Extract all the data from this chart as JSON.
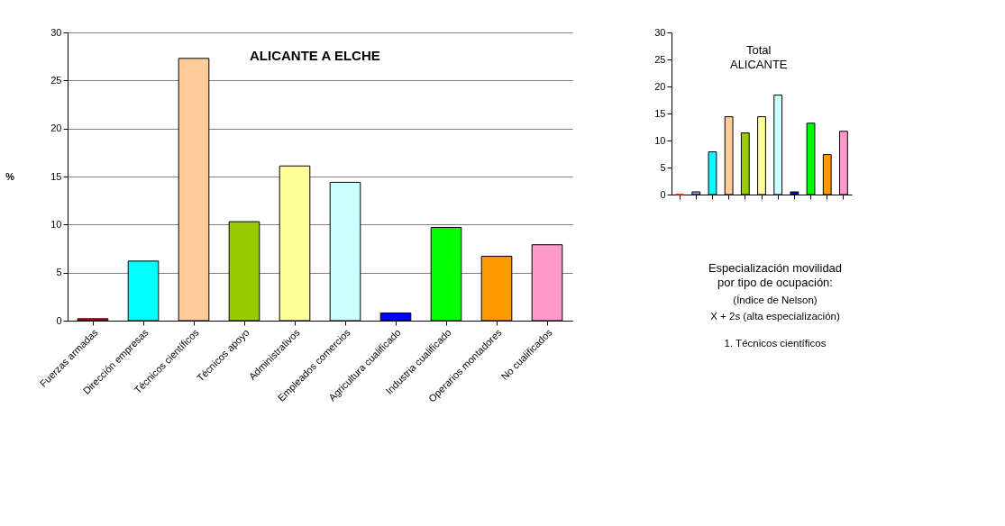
{
  "chart_data": [
    {
      "type": "bar",
      "title": "ALICANTE A ELCHE",
      "ylabel": "%",
      "categories": [
        "Fuerzas armadas",
        "Dirección empresas",
        "Técnicos científicos",
        "Técnicos apoyo",
        "Administrativos",
        "Empleados comercios",
        "Agricultura cualificado",
        "Industria cualificado",
        "Operarios montadores",
        "No cualificados"
      ],
      "values": [
        0.2,
        6.2,
        27.3,
        10.3,
        16.1,
        14.4,
        0.8,
        9.7,
        6.7,
        7.9
      ],
      "colors": [
        "#ff0000",
        "#00ffff",
        "#ffcc99",
        "#99cc00",
        "#ffff99",
        "#ccffff",
        "#0000ff",
        "#00ff00",
        "#ff9900",
        "#ff99cc"
      ],
      "ylim": [
        0,
        30
      ],
      "yticks": [
        0,
        5,
        10,
        15,
        20,
        25,
        30
      ],
      "grid": "y",
      "annotations": [
        "Especialización movilidad\npor tipo de ocupación:",
        "(Índice de Nelson)",
        "X + 2s (alta especialización)",
        "1. Técnicos científicos"
      ]
    },
    {
      "type": "bar",
      "title": "Total\nALICANTE",
      "categories": [
        null,
        null,
        null,
        null,
        null,
        null,
        null,
        null,
        null,
        null,
        null
      ],
      "values": [
        0,
        0.5,
        7.9,
        14.4,
        11.4,
        14.4,
        18.4,
        0.5,
        13.2,
        7.4,
        11.7
      ],
      "colors": [
        "#ff0000",
        "#9999ff",
        "#00ffff",
        "#ffcc99",
        "#99cc00",
        "#ffff99",
        "#ccffff",
        "#0000ff",
        "#00ff00",
        "#ff9900",
        "#ff99cc"
      ],
      "ylim": [
        0,
        30
      ],
      "yticks": [
        0,
        5,
        10,
        15,
        20,
        25,
        30
      ]
    }
  ]
}
